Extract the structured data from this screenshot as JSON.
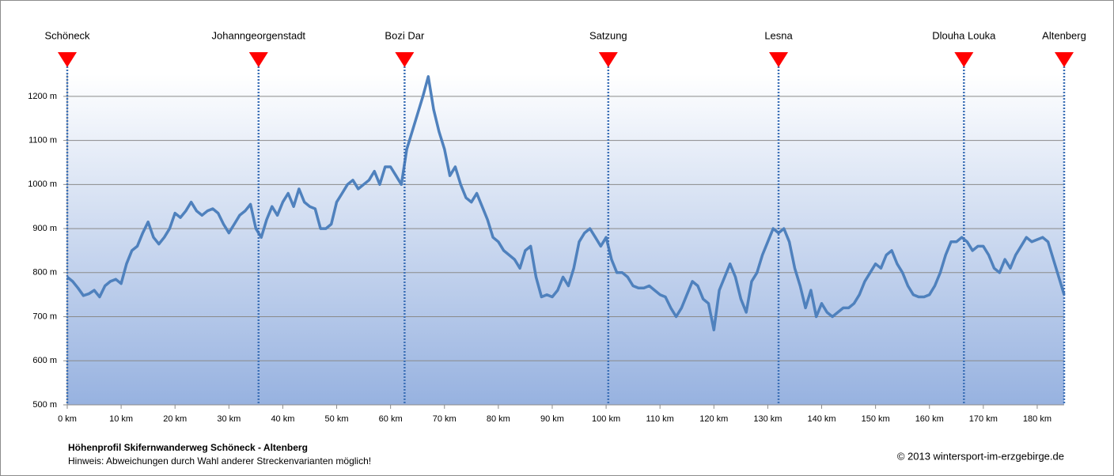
{
  "chart_data": {
    "type": "line",
    "title": "Höhenprofil Skifernwanderweg Schöneck - Altenberg",
    "note": "Hinweis: Abweichungen durch Wahl anderer Streckenvarianten möglich!",
    "copyright": "© 2013 wintersport-im-erzgebirge.de",
    "color": "#4f81bd",
    "grid": true,
    "xlim": [
      0,
      185
    ],
    "ylim": [
      500,
      1250
    ],
    "xticks": [
      {
        "value": 0,
        "label": "0 km"
      },
      {
        "value": 10,
        "label": "10 km"
      },
      {
        "value": 20,
        "label": "20 km"
      },
      {
        "value": 30,
        "label": "30 km"
      },
      {
        "value": 40,
        "label": "40 km"
      },
      {
        "value": 50,
        "label": "50 km"
      },
      {
        "value": 60,
        "label": "60 km"
      },
      {
        "value": 70,
        "label": "70 km"
      },
      {
        "value": 80,
        "label": "80 km"
      },
      {
        "value": 90,
        "label": "90 km"
      },
      {
        "value": 100,
        "label": "100 km"
      },
      {
        "value": 110,
        "label": "110 km"
      },
      {
        "value": 120,
        "label": "120 km"
      },
      {
        "value": 130,
        "label": "130 km"
      },
      {
        "value": 140,
        "label": "140 km"
      },
      {
        "value": 150,
        "label": "150 km"
      },
      {
        "value": 160,
        "label": "160 km"
      },
      {
        "value": 170,
        "label": "170 km"
      },
      {
        "value": 180,
        "label": "180 km"
      }
    ],
    "yticks": [
      {
        "value": 500,
        "label": "500 m"
      },
      {
        "value": 600,
        "label": "600 m"
      },
      {
        "value": 700,
        "label": "700 m"
      },
      {
        "value": 800,
        "label": "800 m"
      },
      {
        "value": 900,
        "label": "900 m"
      },
      {
        "value": 1000,
        "label": "1000 m"
      },
      {
        "value": 1100,
        "label": "1100 m"
      },
      {
        "value": 1200,
        "label": "1200 m"
      }
    ],
    "waypoints": [
      {
        "label": "Schöneck",
        "x": 0
      },
      {
        "label": "Johanngeorgenstadt",
        "x": 35.5
      },
      {
        "label": "Bozi Dar",
        "x": 62.6
      },
      {
        "label": "Satzung",
        "x": 100.4
      },
      {
        "label": "Lesna",
        "x": 132
      },
      {
        "label": "Dlouha Louka",
        "x": 166.4
      },
      {
        "label": "Altenberg",
        "x": 185
      }
    ],
    "x": [
      0,
      1,
      2,
      3,
      4,
      5,
      6,
      7,
      8,
      9,
      10,
      11,
      12,
      13,
      14,
      15,
      16,
      17,
      18,
      19,
      20,
      21,
      22,
      23,
      24,
      25,
      26,
      27,
      28,
      29,
      30,
      31,
      32,
      33,
      34,
      35,
      36,
      37,
      38,
      39,
      40,
      41,
      42,
      43,
      44,
      45,
      46,
      47,
      48,
      49,
      50,
      51,
      52,
      53,
      54,
      55,
      56,
      57,
      58,
      59,
      60,
      61,
      62,
      63,
      64,
      65,
      66,
      67,
      68,
      69,
      70,
      71,
      72,
      73,
      74,
      75,
      76,
      77,
      78,
      79,
      80,
      81,
      82,
      83,
      84,
      85,
      86,
      87,
      88,
      89,
      90,
      91,
      92,
      93,
      94,
      95,
      96,
      97,
      98,
      99,
      100,
      101,
      102,
      103,
      104,
      105,
      106,
      107,
      108,
      109,
      110,
      111,
      112,
      113,
      114,
      115,
      116,
      117,
      118,
      119,
      120,
      121,
      122,
      123,
      124,
      125,
      126,
      127,
      128,
      129,
      130,
      131,
      132,
      133,
      134,
      135,
      136,
      137,
      138,
      139,
      140,
      141,
      142,
      143,
      144,
      145,
      146,
      147,
      148,
      149,
      150,
      151,
      152,
      153,
      154,
      155,
      156,
      157,
      158,
      159,
      160,
      161,
      162,
      163,
      164,
      165,
      166,
      167,
      168,
      169,
      170,
      171,
      172,
      173,
      174,
      175,
      176,
      177,
      178,
      179,
      180,
      181,
      182,
      183,
      184,
      185
    ],
    "values": [
      790,
      780,
      765,
      748,
      752,
      760,
      745,
      770,
      780,
      785,
      775,
      820,
      850,
      860,
      890,
      915,
      880,
      865,
      880,
      900,
      935,
      925,
      940,
      960,
      940,
      930,
      940,
      945,
      935,
      910,
      890,
      910,
      930,
      940,
      955,
      900,
      880,
      920,
      950,
      930,
      960,
      980,
      950,
      990,
      960,
      950,
      945,
      900,
      900,
      910,
      960,
      980,
      1000,
      1010,
      990,
      1000,
      1010,
      1030,
      1000,
      1040,
      1040,
      1020,
      1000,
      1080,
      1120,
      1160,
      1200,
      1245,
      1170,
      1120,
      1080,
      1020,
      1040,
      1000,
      970,
      960,
      980,
      950,
      920,
      880,
      870,
      850,
      840,
      830,
      810,
      850,
      860,
      790,
      745,
      750,
      745,
      760,
      790,
      770,
      810,
      870,
      890,
      900,
      880,
      860,
      880,
      830,
      800,
      800,
      790,
      770,
      765,
      765,
      770,
      760,
      750,
      745,
      720,
      700,
      720,
      750,
      780,
      770,
      740,
      730,
      670,
      760,
      790,
      820,
      790,
      740,
      710,
      780,
      800,
      840,
      870,
      900,
      890,
      900,
      870,
      810,
      770,
      720,
      760,
      700,
      730,
      710,
      700,
      710,
      720,
      720,
      730,
      750,
      780,
      800,
      820,
      810,
      840,
      850,
      820,
      800,
      770,
      750,
      745,
      745,
      750,
      770,
      800,
      840,
      870,
      870,
      880,
      870,
      850,
      860,
      860,
      840,
      810,
      800,
      830,
      810,
      840,
      860,
      880,
      870,
      875,
      880,
      870,
      830,
      790,
      750
    ]
  }
}
